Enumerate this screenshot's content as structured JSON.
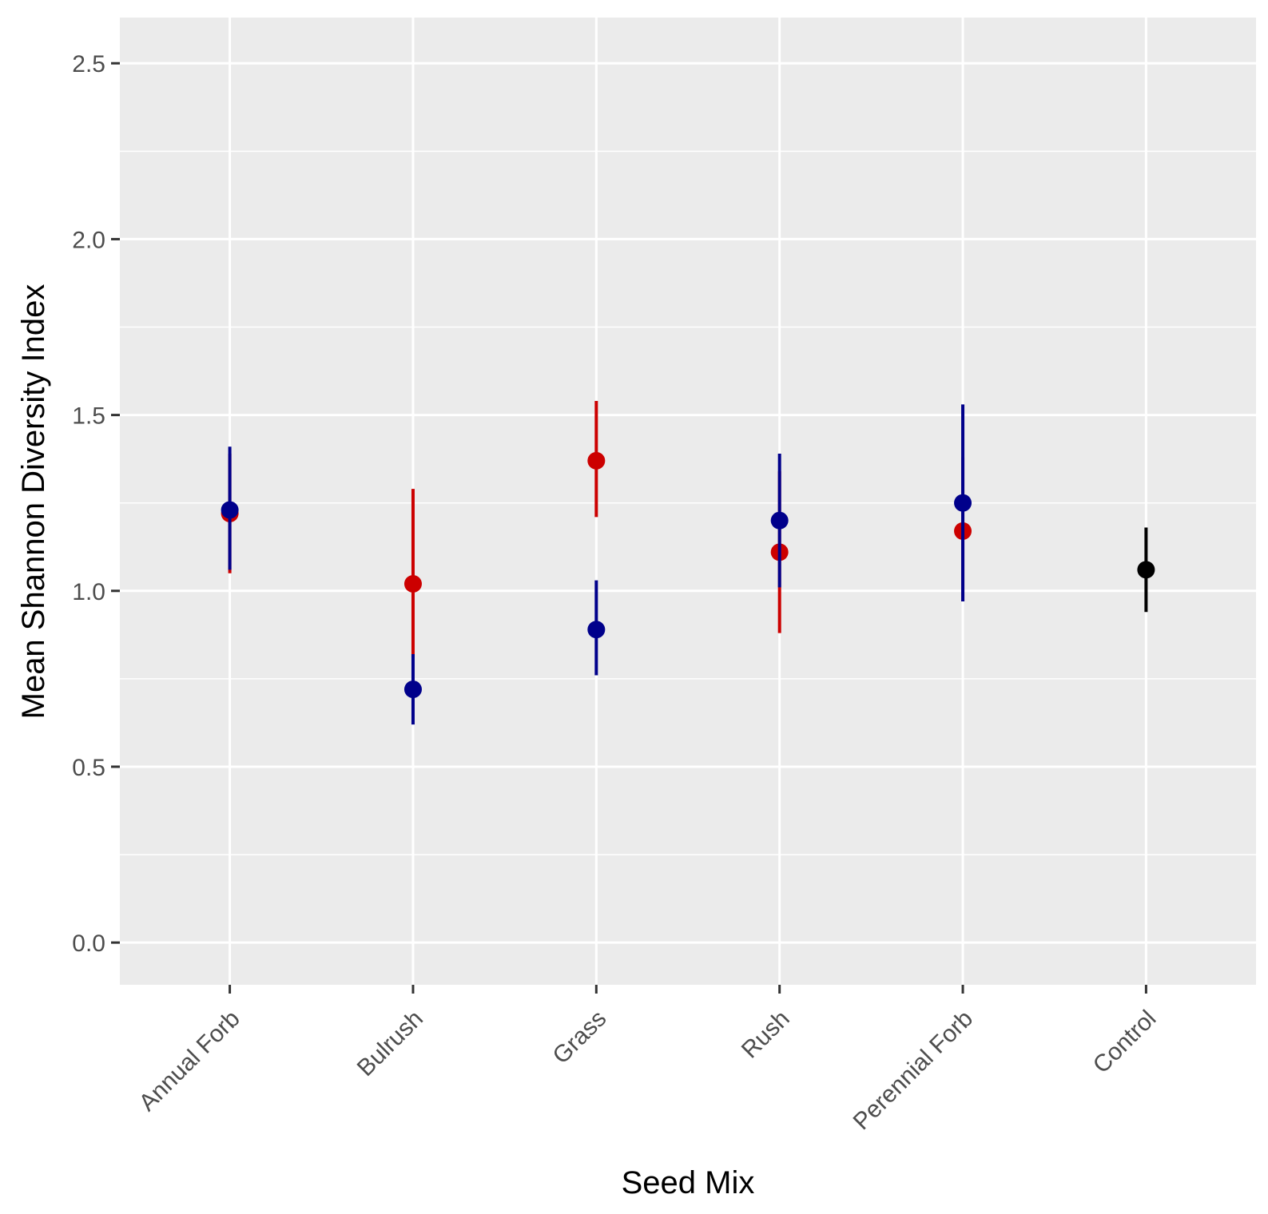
{
  "chart_data": {
    "type": "scatter",
    "xlabel": "Seed Mix",
    "ylabel": "Mean Shannon Diversity Index",
    "ylim": [
      -0.12,
      2.63
    ],
    "yticks": [
      "0.0",
      "0.5",
      "1.0",
      "1.5",
      "2.0",
      "2.5"
    ],
    "categories": [
      "Annual Forb",
      "Bulrush",
      "Grass",
      "Rush",
      "Perennial Forb",
      "Control"
    ],
    "grid": true,
    "legend": "none",
    "series": [
      {
        "color": "#cc0000",
        "points": [
          {
            "category": "Annual Forb",
            "y": 1.22,
            "low": 1.05,
            "high": 1.39
          },
          {
            "category": "Bulrush",
            "y": 1.02,
            "low": 0.81,
            "high": 1.29
          },
          {
            "category": "Grass",
            "y": 1.37,
            "low": 1.21,
            "high": 1.54
          },
          {
            "category": "Rush",
            "y": 1.11,
            "low": 0.88,
            "high": 1.34
          },
          {
            "category": "Perennial Forb",
            "y": 1.17,
            "low": 0.97,
            "high": 1.38
          }
        ]
      },
      {
        "color": "#00008b",
        "points": [
          {
            "category": "Annual Forb",
            "y": 1.23,
            "low": 1.06,
            "high": 1.41
          },
          {
            "category": "Bulrush",
            "y": 0.72,
            "low": 0.62,
            "high": 0.82
          },
          {
            "category": "Grass",
            "y": 0.89,
            "low": 0.76,
            "high": 1.03
          },
          {
            "category": "Rush",
            "y": 1.2,
            "low": 1.01,
            "high": 1.39
          },
          {
            "category": "Perennial Forb",
            "y": 1.25,
            "low": 0.97,
            "high": 1.53
          }
        ]
      },
      {
        "color": "#000000",
        "points": [
          {
            "category": "Control",
            "y": 1.06,
            "low": 0.94,
            "high": 1.18
          }
        ]
      }
    ]
  }
}
